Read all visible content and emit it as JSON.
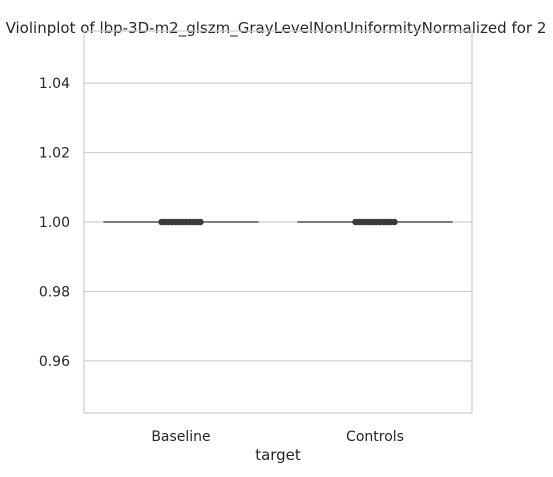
{
  "chart_data": {
    "type": "violin",
    "title": "Violinplot of lbp-3D-m2_glszm_GrayLevelNonUniformityNormalized for 2",
    "xlabel": "target",
    "ylabel": "",
    "categories": [
      "Baseline",
      "Controls"
    ],
    "ylim": [
      0.945,
      1.055
    ],
    "yticks": [
      0.96,
      0.98,
      1.0,
      1.02,
      1.04
    ],
    "ytick_labels": [
      "0.96",
      "0.98",
      "1.00",
      "1.02",
      "1.04"
    ],
    "grid": true,
    "series": [
      {
        "category": "Baseline",
        "median": 1.0,
        "whisker_range": [
          1.0,
          1.0
        ],
        "points": [
          1.0,
          1.0,
          1.0,
          1.0,
          1.0,
          1.0,
          1.0,
          1.0,
          1.0,
          1.0,
          1.0,
          1.0
        ]
      },
      {
        "category": "Controls",
        "median": 1.0,
        "whisker_range": [
          1.0,
          1.0
        ],
        "points": [
          1.0,
          1.0,
          1.0,
          1.0,
          1.0,
          1.0,
          1.0,
          1.0,
          1.0,
          1.0,
          1.0,
          1.0
        ]
      }
    ],
    "colors": {
      "axes_edge": "#cccccc",
      "grid": "#d0d0d0",
      "line": "#555555",
      "points": "#3a3a3a"
    }
  }
}
